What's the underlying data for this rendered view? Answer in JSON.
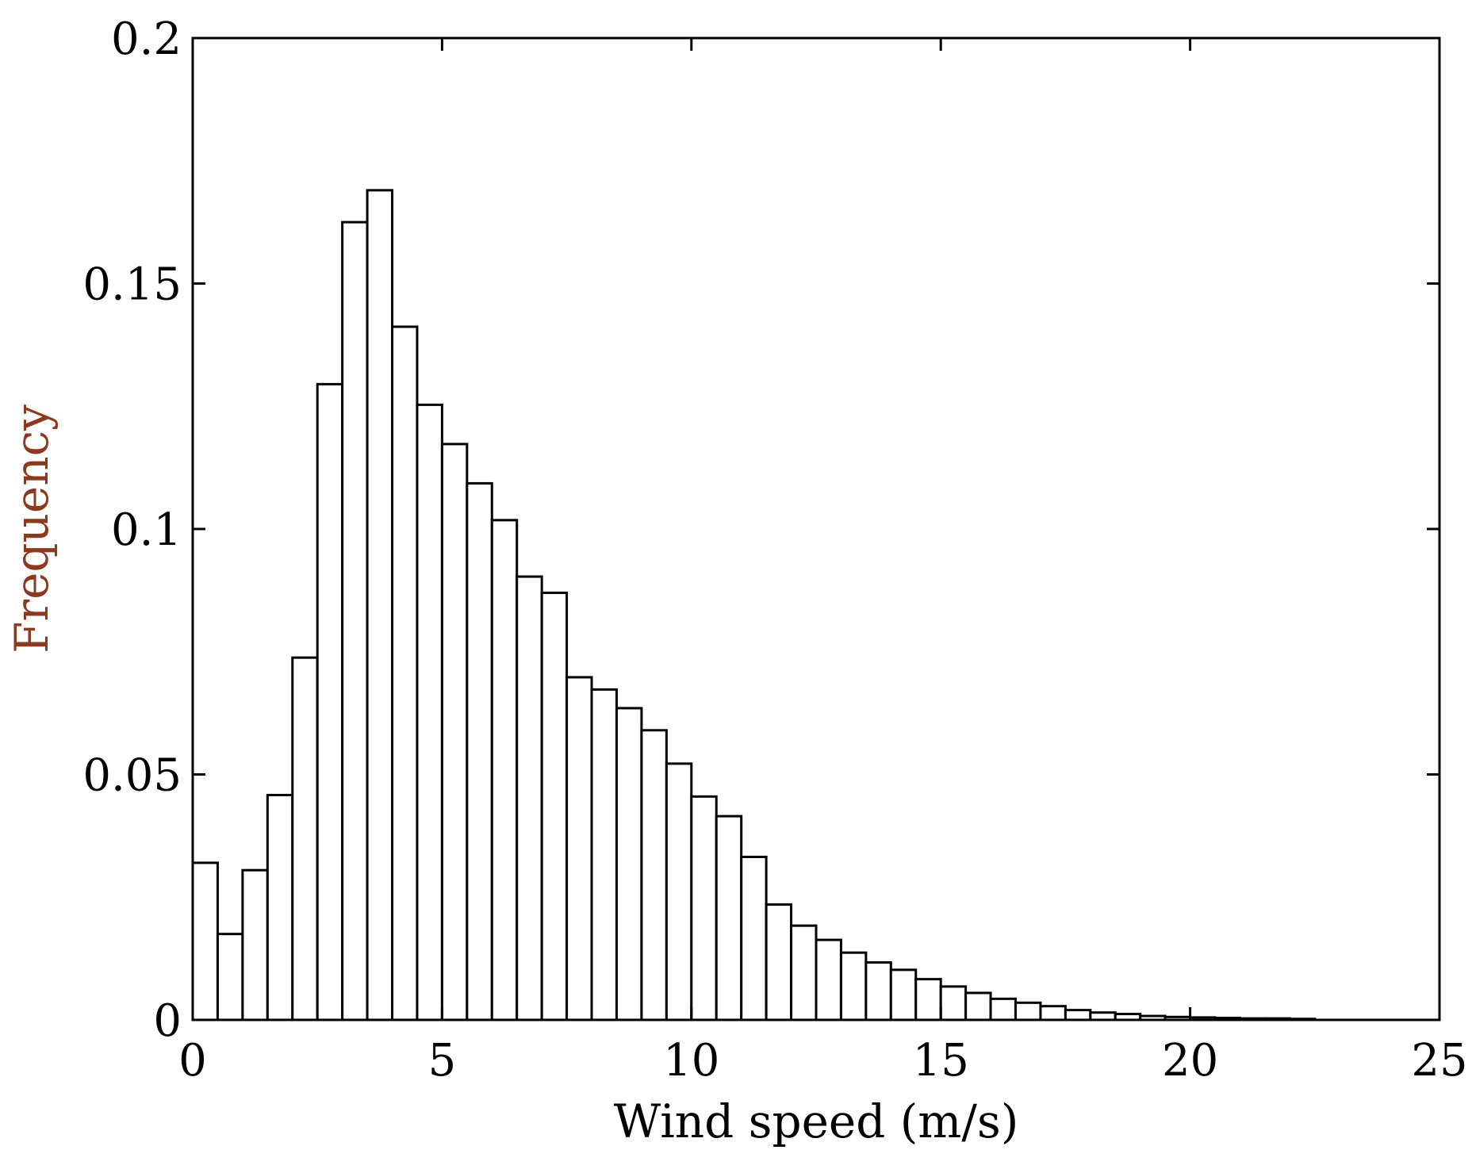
{
  "chart_data": {
    "type": "bar",
    "xlabel": "Wind speed (m/s)",
    "ylabel": "Frequency",
    "xlim": [
      0,
      25
    ],
    "ylim": [
      0,
      0.2
    ],
    "xticks": [
      0,
      5,
      10,
      15,
      20,
      25
    ],
    "yticks": [
      0,
      0.05,
      0.1,
      0.15,
      0.2
    ],
    "xtick_labels": [
      "0",
      "5",
      "10",
      "15",
      "20",
      "25"
    ],
    "ytick_labels": [
      "0",
      "0.05",
      "0.1",
      "0.15",
      "0.2"
    ],
    "bin_width": 0.5,
    "bin_starts": [
      0,
      0.5,
      1,
      1.5,
      2,
      2.5,
      3,
      3.5,
      4,
      4.5,
      5,
      5.5,
      6,
      6.5,
      7,
      7.5,
      8,
      8.5,
      9,
      9.5,
      10,
      10.5,
      11,
      11.5,
      12,
      12.5,
      13,
      13.5,
      14,
      14.5,
      15,
      15.5,
      16,
      16.5,
      17,
      17.5,
      18,
      18.5,
      19,
      19.5,
      20,
      20.5,
      21,
      21.5,
      22
    ],
    "values": [
      0.032,
      0.0175,
      0.0305,
      0.0458,
      0.0738,
      0.1295,
      0.1625,
      0.169,
      0.1412,
      0.1253,
      0.1173,
      0.1093,
      0.1018,
      0.0903,
      0.087,
      0.0698,
      0.0673,
      0.0635,
      0.059,
      0.0522,
      0.0455,
      0.0415,
      0.0332,
      0.0235,
      0.0192,
      0.0163,
      0.0137,
      0.0117,
      0.0102,
      0.0083,
      0.0068,
      0.0055,
      0.0043,
      0.0035,
      0.0028,
      0.002,
      0.0015,
      0.0012,
      0.0008,
      0.0006,
      0.0005,
      0.0004,
      0.0003,
      0.0003,
      0.0002
    ],
    "grid": false,
    "legend": "none",
    "bar_fill": "#ffffff",
    "bar_edge": "#000000",
    "ylabel_color": "#8b3a1f"
  }
}
